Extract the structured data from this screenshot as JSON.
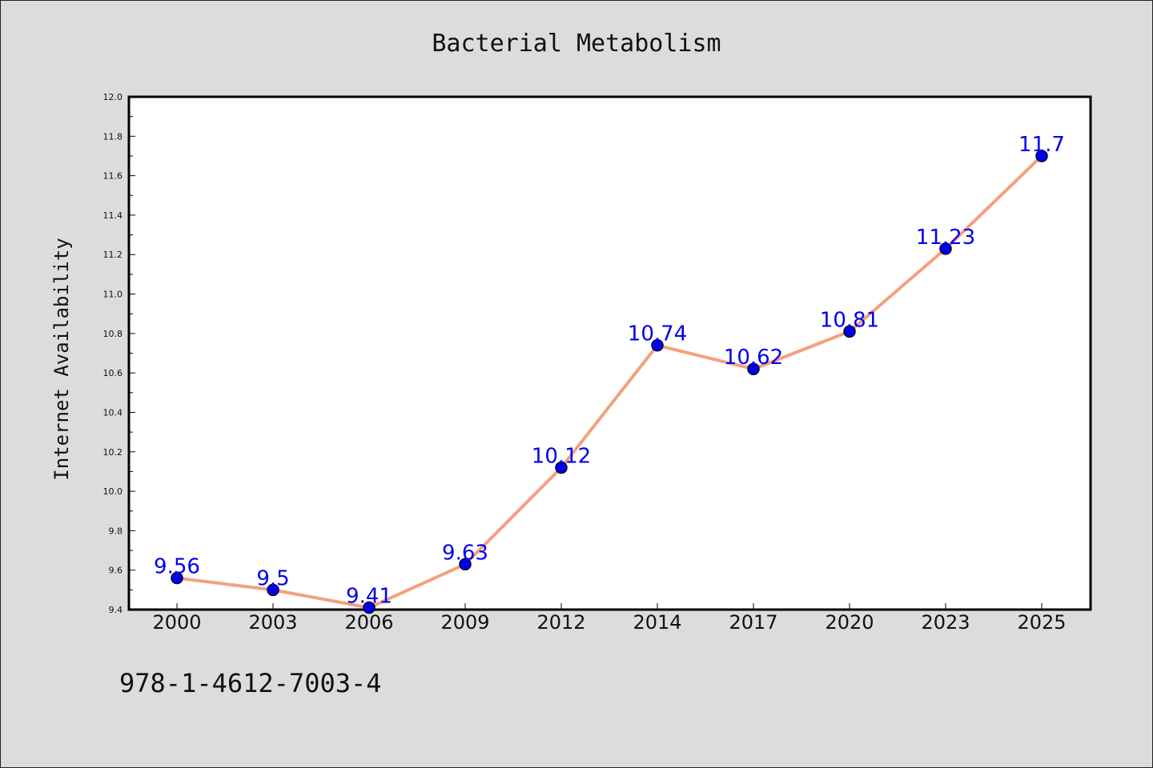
{
  "chart_data": {
    "type": "line",
    "title": "Bacterial Metabolism",
    "xlabel": "",
    "ylabel": "Internet Availability",
    "categories": [
      "2000",
      "2003",
      "2006",
      "2009",
      "2012",
      "2014",
      "2017",
      "2020",
      "2023",
      "2025"
    ],
    "values": [
      9.56,
      9.5,
      9.41,
      9.63,
      10.12,
      10.74,
      10.62,
      10.81,
      11.23,
      11.7
    ],
    "data_labels": [
      "9.56",
      "9.5",
      "9.41",
      "9.63",
      "10.12",
      "10.74",
      "10.62",
      "10.81",
      "11.23",
      "11.7"
    ],
    "ylim": [
      9.4,
      12.0
    ],
    "y_ticks": [
      "9.4",
      "9.6",
      "9.8",
      "10.0",
      "10.2",
      "10.4",
      "10.6",
      "10.8",
      "11.0",
      "11.2",
      "11.4",
      "11.6",
      "11.8",
      "12.0"
    ],
    "grid": false,
    "legend": "none",
    "colors": {
      "line": "#f4a07e",
      "marker": "#0000ee",
      "marker_edge": "#000033",
      "data_label": "#0000ee",
      "plot_background": "#ffffff",
      "page_background": "#dcdcdc"
    }
  },
  "footer": {
    "isbn": "978-1-4612-7003-4"
  }
}
